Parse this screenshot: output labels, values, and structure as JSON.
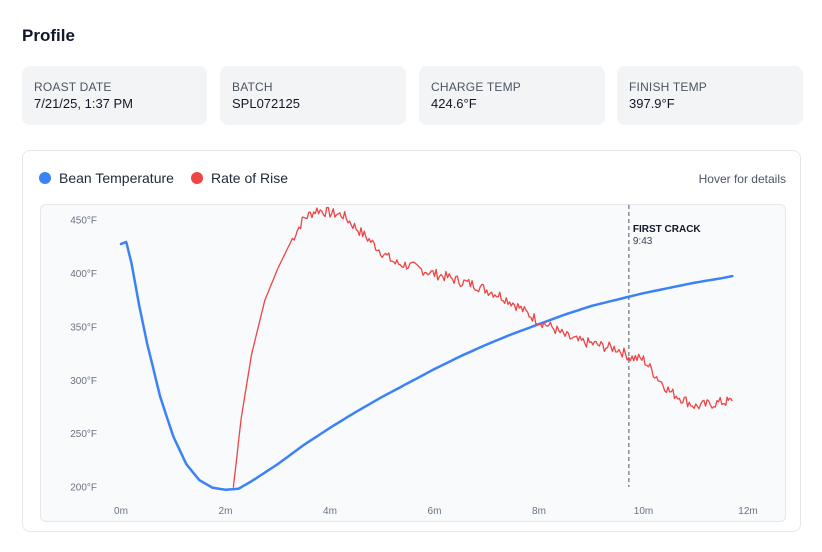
{
  "page": {
    "title": "Profile"
  },
  "stats": [
    {
      "label": "ROAST DATE",
      "value": "7/21/25, 1:37 PM"
    },
    {
      "label": "BATCH",
      "value": "SPL072125"
    },
    {
      "label": "CHARGE TEMP",
      "value": "424.6°F"
    },
    {
      "label": "FINISH TEMP",
      "value": "397.9°F"
    }
  ],
  "legend": [
    {
      "name": "Bean Temperature",
      "color": "#3b82f6"
    },
    {
      "name": "Rate of Rise",
      "color": "#ef4444"
    }
  ],
  "hover_hint": "Hover for details",
  "chart_data": {
    "type": "line",
    "title": "",
    "xlabel": "",
    "ylabel": "",
    "xlim": [
      0,
      12
    ],
    "ylim": [
      195,
      457
    ],
    "x_ticks": [
      0,
      2,
      4,
      6,
      8,
      10,
      12
    ],
    "x_tick_labels": [
      "0m",
      "2m",
      "4m",
      "6m",
      "8m",
      "10m",
      "12m"
    ],
    "y_ticks": [
      200,
      250,
      300,
      350,
      400,
      450
    ],
    "y_tick_labels": [
      "200°F",
      "250°F",
      "300°F",
      "350°F",
      "400°F",
      "450°F"
    ],
    "grid": false,
    "legend_position": "top-left",
    "series": [
      {
        "name": "Bean Temperature",
        "color": "#3b82f6",
        "x": [
          0,
          0.1,
          0.2,
          0.35,
          0.5,
          0.75,
          1.0,
          1.25,
          1.5,
          1.75,
          2.0,
          2.25,
          2.5,
          3.0,
          3.5,
          4.0,
          4.5,
          5.0,
          5.5,
          6.0,
          6.5,
          7.0,
          7.5,
          8.0,
          8.5,
          9.0,
          9.5,
          10.0,
          10.5,
          11.0,
          11.5,
          11.7
        ],
        "y": [
          428,
          430,
          410,
          370,
          335,
          285,
          248,
          222,
          207,
          200,
          198,
          199,
          206,
          222,
          240,
          256,
          271,
          285,
          298,
          311,
          323,
          334,
          344,
          353,
          362,
          370,
          376,
          382,
          387,
          392,
          396,
          398
        ]
      },
      {
        "name": "Rate of Rise",
        "color": "#ef4444",
        "x": [
          2.15,
          2.3,
          2.5,
          2.75,
          3.0,
          3.25,
          3.5,
          3.75,
          4.0,
          4.25,
          4.5,
          4.75,
          5.0,
          5.25,
          5.5,
          5.75,
          6.0,
          6.25,
          6.5,
          6.75,
          7.0,
          7.25,
          7.5,
          7.75,
          8.0,
          8.25,
          8.5,
          8.75,
          9.0,
          9.25,
          9.5,
          9.75,
          10.0,
          10.25,
          10.5,
          10.75,
          11.0,
          11.25,
          11.5,
          11.7
        ],
        "y": [
          200,
          265,
          325,
          375,
          405,
          430,
          452,
          460,
          457,
          455,
          443,
          432,
          420,
          410,
          408,
          404,
          400,
          397,
          393,
          390,
          385,
          380,
          373,
          364,
          356,
          350,
          342,
          337,
          335,
          332,
          330,
          322,
          320,
          304,
          290,
          283,
          276,
          278,
          280,
          281
        ]
      }
    ],
    "annotations": [
      {
        "text": "FIRST CRACK",
        "subtext": "9:43",
        "x": 9.72,
        "style": "dashed-vertical-line"
      }
    ]
  }
}
